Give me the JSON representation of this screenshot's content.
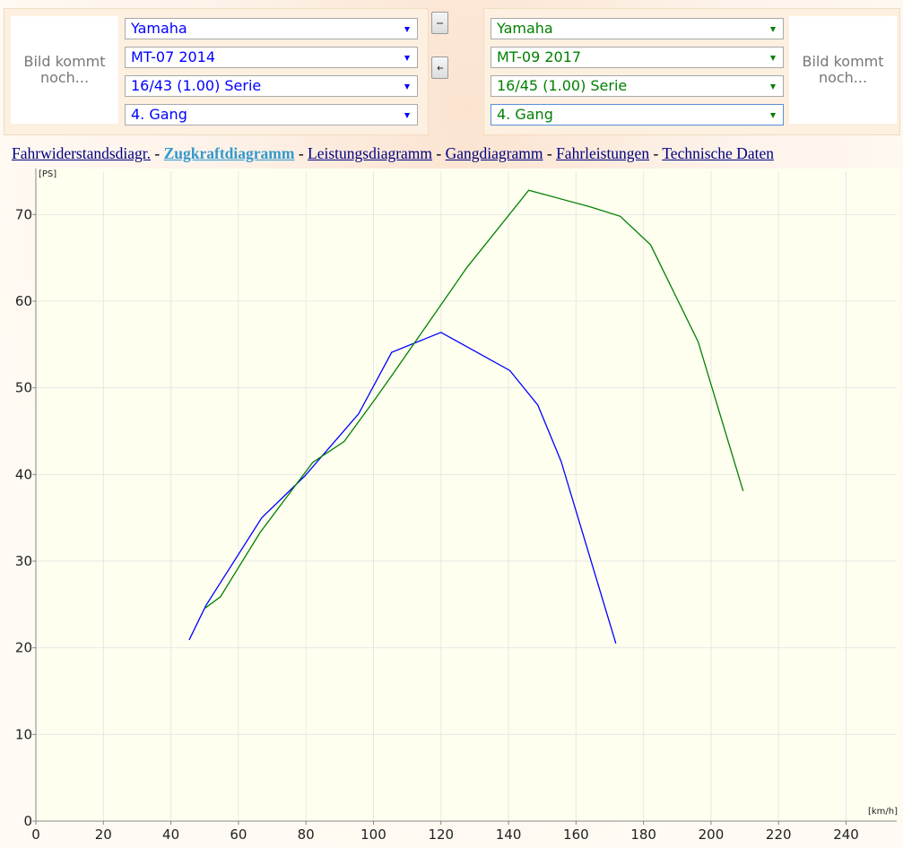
{
  "left_vehicle": {
    "image_placeholder": "Bild kommt noch...",
    "brand": "Yamaha",
    "model": "MT-07 2014",
    "gearing": "16/43 (1.00) Serie",
    "gear": "4. Gang",
    "color": "#0000ff"
  },
  "right_vehicle": {
    "image_placeholder": "Bild kommt noch...",
    "brand": "Yamaha",
    "model": "MT-09 2017",
    "gearing": "16/45 (1.00) Serie",
    "gear": "4. Gang",
    "color": "#008000"
  },
  "nav": {
    "links": [
      "Fahrwiderstandsdiagr.",
      "Zugkraftdiagramm",
      "Leistungsdiagramm",
      "Gangdiagramm",
      "Fahrleistungen",
      "Technische Daten"
    ],
    "active_link": 1,
    "separator": "-"
  },
  "chart_data": {
    "type": "line",
    "x_label": "[km/h]",
    "y_label": "[PS]",
    "xlim": [
      0,
      255
    ],
    "ylim": [
      0,
      75
    ],
    "xticks": [
      0,
      20,
      40,
      60,
      80,
      100,
      120,
      140,
      160,
      180,
      200,
      220,
      240
    ],
    "yticks": [
      0,
      10,
      20,
      30,
      40,
      50,
      60,
      70
    ],
    "grid": true,
    "series": [
      {
        "color": "#0000ff",
        "x": [
          45.4,
          50.4,
          66.9,
          79.6,
          95.6,
          105.4,
          120,
          140.4,
          148.7,
          155.6,
          171.8
        ],
        "values": [
          20.9,
          24.9,
          35.0,
          39.8,
          47.0,
          54.1,
          56.4,
          52.0,
          48.0,
          41.5,
          20.5
        ]
      },
      {
        "color": "#008000",
        "x": [
          50.2,
          54.7,
          66.4,
          82.0,
          91.3,
          100.3,
          105.4,
          127.7,
          146.0,
          164.1,
          173.1,
          182.1,
          196.2,
          209.5
        ],
        "values": [
          24.6,
          25.9,
          33.3,
          41.4,
          43.8,
          48.6,
          51.4,
          63.9,
          72.8,
          70.9,
          69.8,
          66.5,
          55.3,
          38.1
        ]
      }
    ]
  }
}
